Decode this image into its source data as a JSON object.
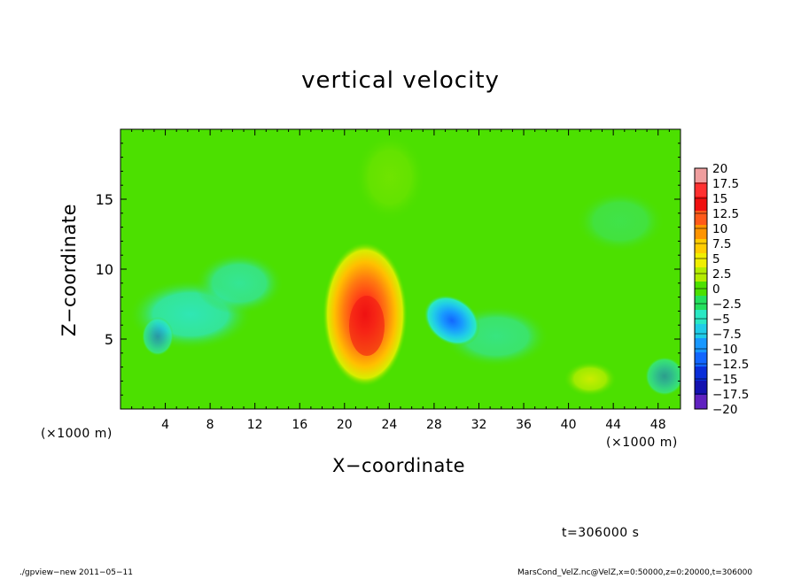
{
  "chart_data": {
    "type": "heatmap",
    "title": "vertical velocity",
    "xlabel": "X−coordinate",
    "ylabel": "Z−coordinate",
    "x_unit_left": "(×1000 m)",
    "x_unit_right": "(×1000 m)",
    "xlim": [
      0,
      50
    ],
    "ylim": [
      0,
      20
    ],
    "x_ticks": [
      "4",
      "8",
      "12",
      "16",
      "20",
      "24",
      "28",
      "32",
      "36",
      "40",
      "44",
      "48"
    ],
    "y_ticks": [
      "5",
      "10",
      "15"
    ],
    "x_tick_values": [
      4,
      8,
      12,
      16,
      20,
      24,
      28,
      32,
      36,
      40,
      44,
      48
    ],
    "y_tick_values": [
      5,
      10,
      15
    ],
    "colorbar": {
      "range": [
        -20,
        20
      ],
      "labels": [
        "20",
        "17.5",
        "15",
        "12.5",
        "10",
        "7.5",
        "5",
        "2.5",
        "0",
        "−2.5",
        "−5",
        "−7.5",
        "−10",
        "−12.5",
        "−15",
        "−17.5",
        "−20"
      ],
      "colors": [
        "#ef9e9e",
        "#ff3030",
        "#f01010",
        "#ff5a1a",
        "#ff9400",
        "#ffcc00",
        "#f0ee00",
        "#b4ec00",
        "#4ce000",
        "#24e05e",
        "#2ae8c4",
        "#20cce8",
        "#1898ff",
        "#1266ff",
        "#0a2ed8",
        "#1412b0",
        "#6022c0"
      ]
    },
    "features": [
      {
        "x": 22,
        "z": 7,
        "w": 18,
        "desc": "updraft core"
      },
      {
        "x": 29.5,
        "z": 6.5,
        "w": -10,
        "desc": "downdraft"
      },
      {
        "x": 3,
        "z": 5,
        "w": -6,
        "desc": "weak downdraft"
      },
      {
        "x": 11,
        "z": 8,
        "w": -5,
        "desc": "weak downdraft"
      },
      {
        "x": 49,
        "z": 2.5,
        "w": -7,
        "desc": "weak downdraft"
      },
      {
        "x": 42,
        "z": 2,
        "w": 4,
        "desc": "weak updraft"
      }
    ]
  },
  "time_label": "t=306000 s",
  "footer_left": "./gpview−new   2011−05−11",
  "footer_right": "MarsCond_VelZ.nc@VelZ,x=0:50000,z=0:20000,t=306000"
}
